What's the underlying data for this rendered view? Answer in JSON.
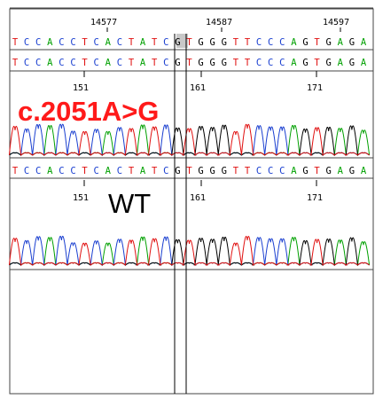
{
  "reference": {
    "positions": [
      "14577",
      "14587",
      "14597"
    ],
    "sequence": "TCCACCTCACTATCGTGGGTTCCCAGTGAGA"
  },
  "tracks": [
    {
      "label": "c.2051A>G",
      "sequence": "TCCACCTCACTATCGTGGGTTCCCAGTGAGA",
      "positions": [
        "151",
        "161",
        "171"
      ],
      "label_color": "#ff1a1a"
    },
    {
      "label": "WT",
      "sequence": "TCCACCTCACTATCGTGGGTTCCCAGTGAGA",
      "positions": [
        "151",
        "161",
        "171"
      ],
      "label_color": "#000000"
    }
  ],
  "colors": {
    "A": "#00a000",
    "C": "#1a3fd0",
    "G": "#000000",
    "T": "#e01010",
    "border": "#555555",
    "highlight": "#c0c0c0"
  }
}
